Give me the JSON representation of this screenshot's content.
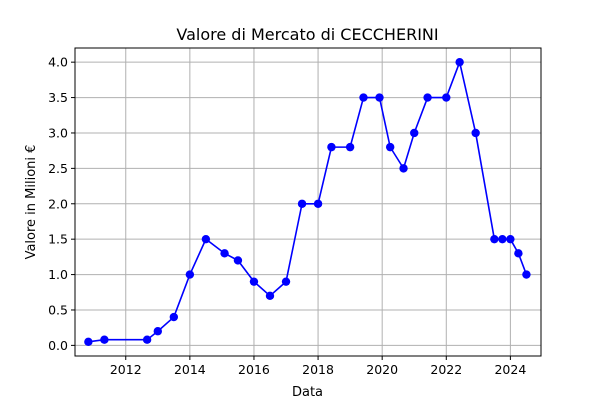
{
  "chart_data": {
    "type": "line",
    "title": "Valore di Mercato di CECCHERINI",
    "xlabel": "Data",
    "ylabel": "Valore in Milioni €",
    "x_axis_type": "date",
    "xlim": [
      "2010-06-01",
      "2024-12-15"
    ],
    "ylim": [
      -0.15,
      4.2
    ],
    "x_ticks": [
      "2012",
      "2014",
      "2016",
      "2018",
      "2020",
      "2022",
      "2024"
    ],
    "y_ticks": [
      "0.0",
      "0.5",
      "1.0",
      "1.5",
      "2.0",
      "2.5",
      "3.0",
      "3.5",
      "4.0"
    ],
    "grid": true,
    "color": "#0000ff",
    "series": [
      {
        "x": [
          "2010-11-01",
          "2011-05-01",
          "2012-09-01",
          "2013-01-01",
          "2013-07-01",
          "2014-01-01",
          "2014-07-01",
          "2015-02-01",
          "2015-07-01",
          "2016-01-01",
          "2016-07-01",
          "2017-01-01",
          "2017-07-01",
          "2018-01-01",
          "2018-06-01",
          "2019-01-01",
          "2019-06-01",
          "2019-12-01",
          "2020-04-01",
          "2020-09-01",
          "2021-01-01",
          "2021-06-01",
          "2022-01-01",
          "2022-06-01",
          "2022-12-01",
          "2023-07-01",
          "2023-10-01",
          "2024-01-01",
          "2024-04-01",
          "2024-07-01"
        ],
        "values": [
          0.05,
          0.08,
          0.08,
          0.2,
          0.4,
          1.0,
          1.5,
          1.3,
          1.2,
          0.9,
          0.7,
          0.9,
          2.0,
          2.0,
          2.8,
          2.8,
          3.5,
          3.5,
          2.8,
          2.5,
          3.0,
          3.5,
          3.5,
          4.0,
          3.0,
          1.5,
          1.5,
          1.5,
          1.3,
          1.0
        ]
      }
    ]
  }
}
